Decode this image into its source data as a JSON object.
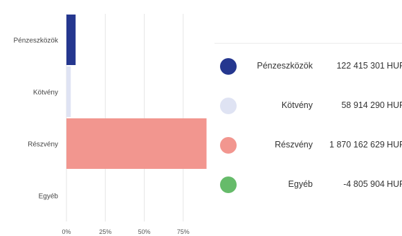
{
  "chart_data": {
    "type": "bar",
    "orientation": "horizontal",
    "categories": [
      "Pénzeszközök",
      "Kötvény",
      "Részvény",
      "Egyéb"
    ],
    "values": [
      122415301,
      58914290,
      1870162629,
      -4805904
    ],
    "percent_values": [
      5.9,
      2.8,
      90.0,
      -0.2
    ],
    "x_ticks": [
      "0%",
      "25%",
      "50%",
      "75%"
    ],
    "xlim": [
      0,
      90
    ],
    "grid": true,
    "colors": [
      "#25378f",
      "#dfe3f3",
      "#f2968f",
      "#66bb6a"
    ],
    "legend": {
      "placement": "right",
      "items": [
        {
          "label": "Pénzeszközök",
          "value": "122 415 301",
          "unit": "HUF",
          "color": "#25378f"
        },
        {
          "label": "Kötvény",
          "value": "58 914 290",
          "unit": "HUF",
          "color": "#dfe3f3"
        },
        {
          "label": "Részvény",
          "value": "1 870 162 629",
          "unit": "HUF",
          "color": "#f2968f"
        },
        {
          "label": "Egyéb",
          "value": "-4 805 904",
          "unit": "HUF",
          "color": "#66bb6a"
        }
      ]
    }
  }
}
